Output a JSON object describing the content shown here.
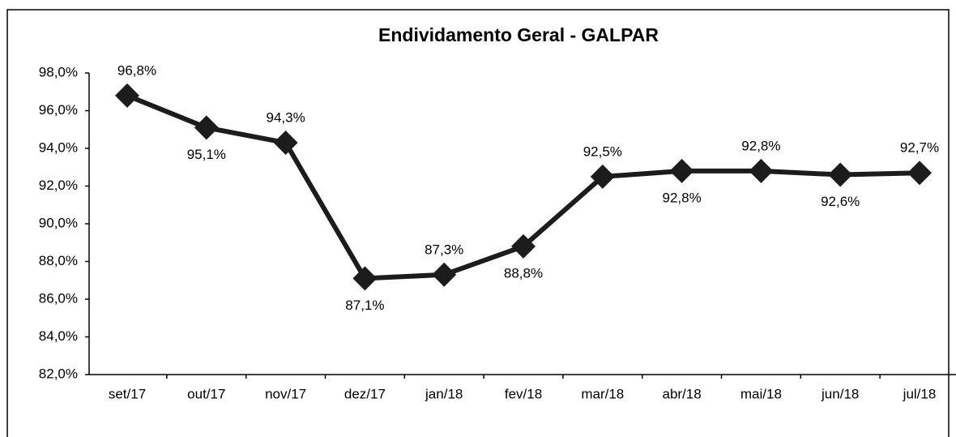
{
  "chart_data": {
    "type": "line",
    "title": "Endividamento Geral - GALPAR",
    "categories": [
      "set/17",
      "out/17",
      "nov/17",
      "dez/17",
      "jan/18",
      "fev/18",
      "mar/18",
      "abr/18",
      "mai/18",
      "jun/18",
      "jul/18"
    ],
    "values": [
      96.8,
      95.1,
      94.3,
      87.1,
      87.3,
      88.8,
      92.5,
      92.8,
      92.8,
      92.6,
      92.7
    ],
    "value_labels": [
      "96,8%",
      "95,1%",
      "94,3%",
      "87,1%",
      "87,3%",
      "88,8%",
      "92,5%",
      "92,8%",
      "92,8%",
      "92,6%",
      "92,7%"
    ],
    "color": "#1c1c1c",
    "ylim": [
      82,
      98
    ],
    "yticks": [
      {
        "value": 82,
        "label": "82,0%"
      },
      {
        "value": 84,
        "label": "84,0%"
      },
      {
        "value": 86,
        "label": "86,0%"
      },
      {
        "value": 88,
        "label": "88,0%"
      },
      {
        "value": 90,
        "label": "90,0%"
      },
      {
        "value": 92,
        "label": "92,0%"
      },
      {
        "value": 94,
        "label": "94,0%"
      },
      {
        "value": 96,
        "label": "96,0%"
      },
      {
        "value": 98,
        "label": "98,0%"
      }
    ],
    "grid": false
  }
}
